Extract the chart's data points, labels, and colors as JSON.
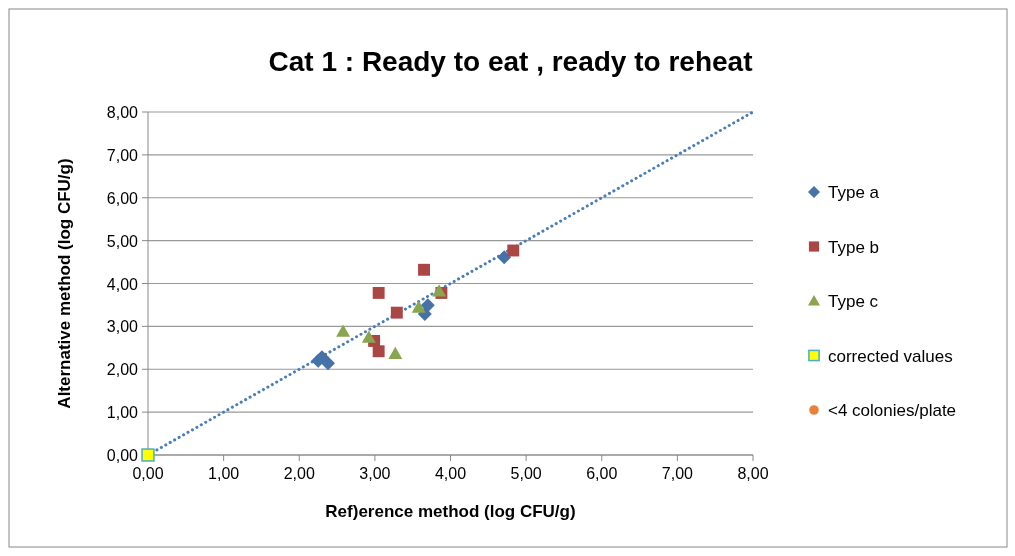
{
  "chart_data": {
    "type": "scatter",
    "title": "Cat 1 : Ready to eat , ready to reheat",
    "xlabel": "Ref)erence method (log CFU/g)",
    "ylabel": "Alternative method (log CFU/g)",
    "xlim": [
      0,
      8
    ],
    "ylim": [
      0,
      8
    ],
    "xticks": [
      {
        "value": 0,
        "label": "0,00"
      },
      {
        "value": 1,
        "label": "1,00"
      },
      {
        "value": 2,
        "label": "2,00"
      },
      {
        "value": 3,
        "label": "3,00"
      },
      {
        "value": 4,
        "label": "4,00"
      },
      {
        "value": 5,
        "label": "5,00"
      },
      {
        "value": 6,
        "label": "6,00"
      },
      {
        "value": 7,
        "label": "7,00"
      },
      {
        "value": 8,
        "label": "8,00"
      }
    ],
    "yticks": [
      {
        "value": 0,
        "label": "0,00"
      },
      {
        "value": 1,
        "label": "1,00"
      },
      {
        "value": 2,
        "label": "2,00"
      },
      {
        "value": 3,
        "label": "3,00"
      },
      {
        "value": 4,
        "label": "4,00"
      },
      {
        "value": 5,
        "label": "5,00"
      },
      {
        "value": 6,
        "label": "6,00"
      },
      {
        "value": 7,
        "label": "7,00"
      },
      {
        "value": 8,
        "label": "8,00"
      }
    ],
    "grid": "y",
    "legend": "right",
    "series": [
      {
        "type": "line",
        "color": "#4a7ebb",
        "line_style": "dotted",
        "marker": "none",
        "x": [
          0,
          8
        ],
        "values": [
          0,
          8
        ]
      },
      {
        "name": "Type a",
        "color": "#4572a7",
        "marker": "diamond",
        "x": [
          2.25,
          2.3,
          2.38,
          3.66,
          3.7,
          4.71
        ],
        "values": [
          2.2,
          2.28,
          2.14,
          3.29,
          3.49,
          4.61
        ]
      },
      {
        "name": "Type b",
        "color": "#aa4643",
        "marker": "square",
        "x": [
          3.05,
          3.65,
          3.29,
          2.99,
          3.05,
          3.88,
          4.83
        ],
        "values": [
          3.78,
          4.32,
          3.32,
          2.66,
          2.42,
          3.78,
          4.77
        ]
      },
      {
        "name": "Type c",
        "color": "#89a54e",
        "marker": "triangle",
        "x": [
          2.58,
          2.92,
          3.27,
          3.58,
          3.85
        ],
        "values": [
          2.88,
          2.74,
          2.36,
          3.44,
          3.82
        ]
      },
      {
        "name": "corrected values",
        "color": "#ffff00",
        "marker": "square",
        "x": [
          0
        ],
        "values": [
          0
        ]
      },
      {
        "name": "<4 colonies/plate",
        "color": "#e8823a",
        "marker": "circle"
      }
    ]
  }
}
